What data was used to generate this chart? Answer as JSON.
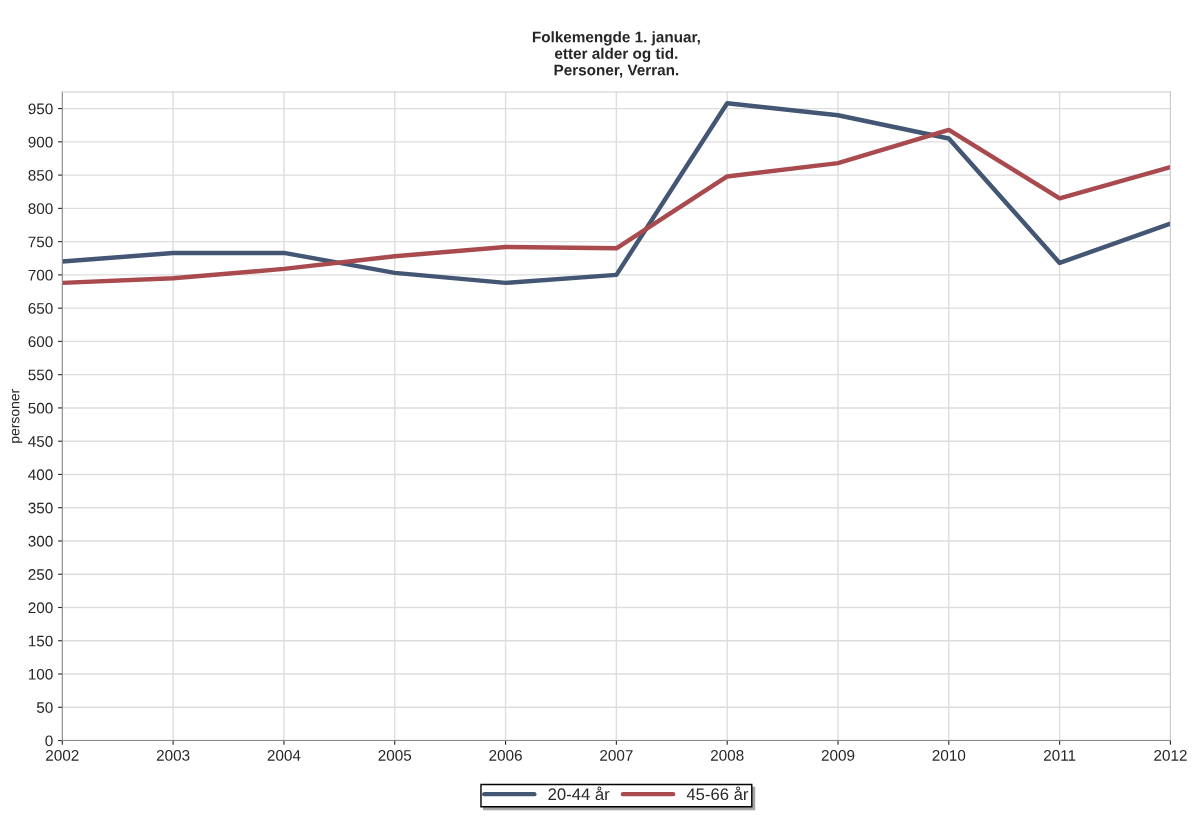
{
  "chart_data": {
    "type": "line",
    "title": "Folkemengde 1. januar,\netter alder og tid.\nPersoner, Verran.",
    "ylabel": "personer",
    "x": [
      2002,
      2003,
      2004,
      2005,
      2006,
      2007,
      2008,
      2009,
      2010,
      2011,
      2012
    ],
    "series": [
      {
        "name": "20-44 år",
        "color": "#435674",
        "values": [
          720,
          733,
          733,
          703,
          688,
          700,
          958,
          940,
          905,
          718,
          777
        ]
      },
      {
        "name": "45-66 år",
        "color": "#a94a4f",
        "values": [
          688,
          695,
          709,
          728,
          742,
          740,
          848,
          868,
          918,
          815,
          862
        ]
      }
    ],
    "xlim": [
      2002,
      2012
    ],
    "xticks": [
      2002,
      2003,
      2004,
      2005,
      2006,
      2007,
      2008,
      2009,
      2010,
      2011,
      2012
    ],
    "ylim": [
      0,
      975
    ],
    "yticks": [
      0,
      50,
      100,
      150,
      200,
      250,
      300,
      350,
      400,
      450,
      500,
      550,
      600,
      650,
      700,
      750,
      800,
      850,
      900,
      950
    ],
    "grid": true,
    "legend": "bottom",
    "marker": "none",
    "line_style": "solid"
  }
}
